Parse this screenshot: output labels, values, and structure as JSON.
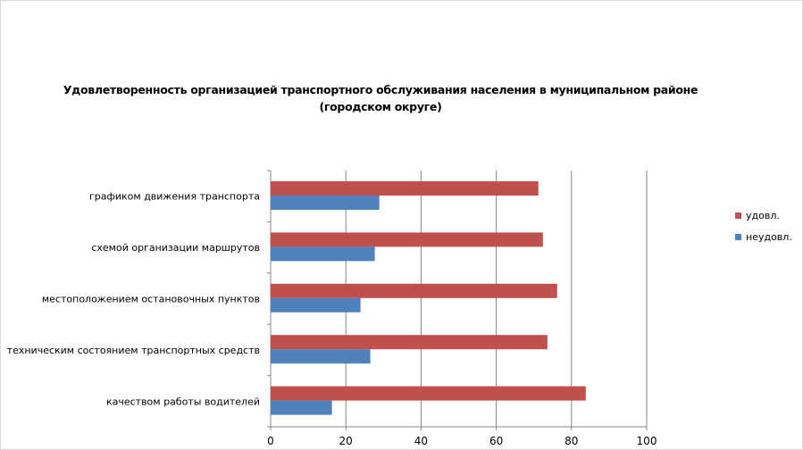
{
  "chart_data": {
    "type": "bar",
    "orientation": "horizontal",
    "title": "Удовлетворенность организацией транспортного обслуживания населения в муниципальном районе",
    "title_line2": "(городском округе)",
    "categories": [
      "графиком движения транспорта",
      "схемой организации маршрутов",
      "местоположением остановочных пунктов",
      "техническим состоянием транспортных средств",
      "качеством работы водителей"
    ],
    "series": [
      {
        "name": "удовл.",
        "color": "#c0504d",
        "values": [
          71.2,
          72.4,
          76.2,
          73.6,
          83.8
        ]
      },
      {
        "name": "неудовл.",
        "color": "#4f81bd",
        "values": [
          28.9,
          27.7,
          23.9,
          26.5,
          16.3
        ]
      }
    ],
    "xlim": [
      0,
      100
    ],
    "xticks": [
      "0",
      "20",
      "40",
      "60",
      "80",
      "100"
    ],
    "grid": true,
    "legend": "right"
  }
}
